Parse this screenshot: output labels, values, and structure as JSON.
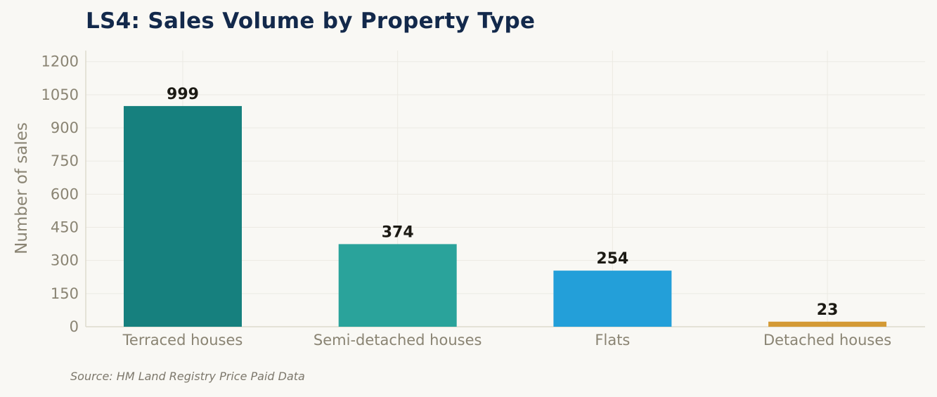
{
  "chart_data": {
    "type": "bar",
    "title": "LS4: Sales Volume by Property Type",
    "ylabel": "Number of sales",
    "xlabel": "",
    "categories": [
      "Terraced houses",
      "Semi-detached houses",
      "Flats",
      "Detached houses"
    ],
    "values": [
      999,
      374,
      254,
      23
    ],
    "data_labels": [
      "999",
      "374",
      "254",
      "23"
    ],
    "bar_colors": [
      "#16807e",
      "#2aa39b",
      "#239fd9",
      "#d49a35"
    ],
    "ylim": [
      0,
      1250
    ],
    "yticks": [
      0,
      150,
      300,
      450,
      600,
      750,
      900,
      1050,
      1200
    ],
    "ytick_labels": [
      "0",
      "150",
      "300",
      "450",
      "600",
      "750",
      "900",
      "1050",
      "1200"
    ],
    "grid": true,
    "legend": "none"
  },
  "source": "Source: HM Land Registry Price Paid Data",
  "colors": {
    "background": "#f9f8f4",
    "title": "#13294b",
    "gridline": "#eceae3",
    "axis": "#dedacd",
    "label_text": "#8a8473"
  }
}
